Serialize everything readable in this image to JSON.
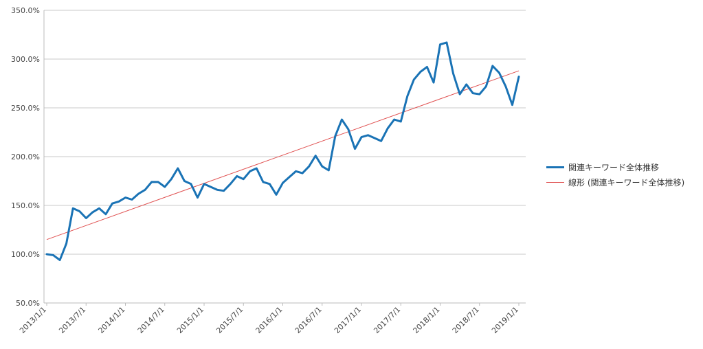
{
  "chart_data": {
    "type": "line",
    "title": "",
    "xlabel": "",
    "ylabel": "",
    "ylim": [
      50,
      350
    ],
    "y_ticks": [
      "50.0%",
      "100.0%",
      "150.0%",
      "200.0%",
      "250.0%",
      "300.0%",
      "350.0%"
    ],
    "x_tick_labels": [
      "2013/1/1",
      "2013/7/1",
      "2014/1/1",
      "2014/7/1",
      "2015/1/1",
      "2015/7/1",
      "2016/1/1",
      "2016/7/1",
      "2017/1/1",
      "2017/7/1",
      "2018/1/1",
      "2018/7/1",
      "2019/1/1"
    ],
    "grid": "horizontal",
    "legend_position": "right",
    "colors": {
      "main": "#1a73b5",
      "trend": "#e05050"
    },
    "series": [
      {
        "name": "関連キーワード全体推移",
        "values": [
          100,
          99,
          94,
          111,
          147,
          144,
          137,
          143,
          147,
          141,
          152,
          154,
          158,
          156,
          162,
          166,
          174,
          174,
          169,
          177,
          188,
          175,
          172,
          158,
          172,
          169,
          166,
          165,
          172,
          180,
          177,
          185,
          188,
          174,
          172,
          161,
          173,
          179,
          185,
          183,
          190,
          201,
          190,
          186,
          221,
          238,
          228,
          208,
          220,
          222,
          219,
          216,
          229,
          238,
          236,
          262,
          279,
          287,
          292,
          276,
          315,
          317,
          285,
          264,
          274,
          265,
          264,
          272,
          293,
          286,
          272,
          253,
          282
        ]
      },
      {
        "name": "線形 (関連キーワード全体推移)",
        "type": "trendline",
        "start": 115,
        "end": 288
      }
    ]
  }
}
